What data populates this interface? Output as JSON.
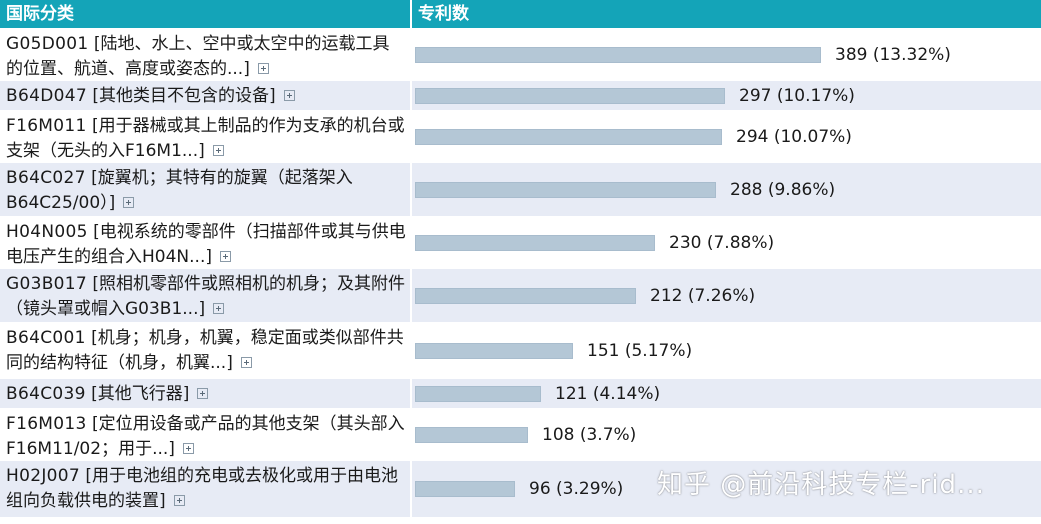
{
  "header": {
    "col_class": "国际分类",
    "col_count": "专利数"
  },
  "chart_data": {
    "type": "bar",
    "orientation": "horizontal",
    "title": "",
    "xlabel": "专利数",
    "ylabel": "国际分类",
    "xlim": [
      0,
      389
    ],
    "categories": [
      {
        "code": "G05D001",
        "desc": "[陆地、水上、空中或太空中的运载工具的位置、航道、高度或姿态的...]"
      },
      {
        "code": "B64D047",
        "desc": "[其他类目不包含的设备]"
      },
      {
        "code": "F16M011",
        "desc": "[用于器械或其上制品的作为支承的机台或支架（无头的入F16M1...]"
      },
      {
        "code": "B64C027",
        "desc": "[旋翼机；其特有的旋翼（起落架入B64C25/00）]"
      },
      {
        "code": "H04N005",
        "desc": "[电视系统的零部件（扫描部件或其与供电电压产生的组合入H04N...]"
      },
      {
        "code": "G03B017",
        "desc": "[照相机零部件或照相机的机身；及其附件（镜头罩或帽入G03B1...]"
      },
      {
        "code": "B64C001",
        "desc": "[机身；机身，机翼，稳定面或类似部件共同的结构特征（机身，机翼...]"
      },
      {
        "code": "B64C039",
        "desc": "[其他飞行器]"
      },
      {
        "code": "F16M013",
        "desc": "[定位用设备或产品的其他支架（其头部入F16M11/02；用于...]"
      },
      {
        "code": "H02J007",
        "desc": "[用于电池组的充电或去极化或用于由电池组向负载供电的装置]"
      }
    ],
    "values": [
      389,
      297,
      294,
      288,
      230,
      212,
      151,
      121,
      108,
      96
    ],
    "labels": [
      "389 (13.32%)",
      "297 (10.17%)",
      "294 (10.07%)",
      "288 (9.86%)",
      "230 (7.88%)",
      "212 (7.26%)",
      "151 (5.17%)",
      "121 (4.14%)",
      "108 (3.7%)",
      "96 (3.29%)"
    ],
    "bar_color": "#b4c7d6",
    "header_color": "#14a4b8",
    "alt_row_color": "#e7ebf5",
    "grid": false,
    "legend": "none"
  },
  "watermark": "知乎 @前沿科技专栏-rid..."
}
